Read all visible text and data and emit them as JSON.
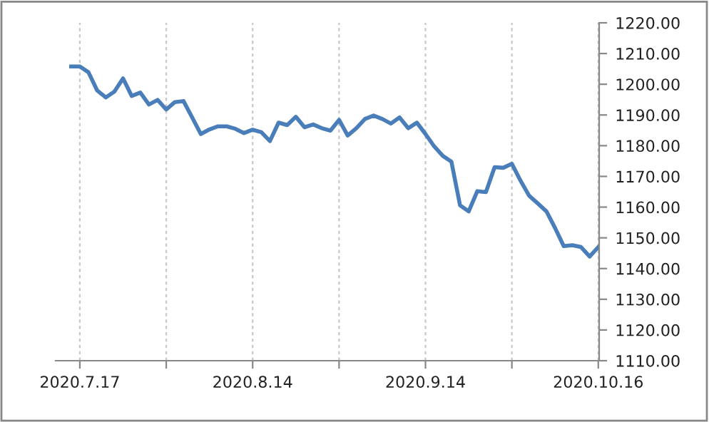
{
  "chart_data": {
    "type": "line",
    "categories": [
      null,
      "2020.7.17",
      null,
      null,
      null,
      null,
      null,
      null,
      null,
      null,
      null,
      null,
      null,
      null,
      null,
      null,
      null,
      null,
      null,
      null,
      null,
      "2020.8.14",
      null,
      null,
      null,
      null,
      null,
      null,
      null,
      null,
      null,
      null,
      null,
      null,
      null,
      null,
      null,
      null,
      null,
      null,
      null,
      "2020.9.14",
      null,
      null,
      null,
      null,
      null,
      null,
      null,
      null,
      null,
      null,
      null,
      null,
      null,
      null,
      null,
      null,
      null,
      null,
      null,
      "2020.10.16"
    ],
    "series": [
      {
        "color": "#4a7ebb",
        "values": [
          1205.8,
          1205.8,
          1203.9,
          1198.0,
          1195.7,
          1197.6,
          1201.9,
          1196.2,
          1197.3,
          1193.4,
          1194.9,
          1191.8,
          1194.2,
          1194.5,
          1189.2,
          1183.8,
          1185.3,
          1186.3,
          1186.3,
          1185.5,
          1184.1,
          1185.2,
          1184.4,
          1181.5,
          1187.5,
          1186.7,
          1189.4,
          1186.0,
          1186.9,
          1185.7,
          1184.9,
          1188.4,
          1183.3,
          1185.7,
          1188.7,
          1189.8,
          1188.7,
          1187.2,
          1189.2,
          1185.7,
          1187.5,
          1183.8,
          1179.8,
          1176.7,
          1174.8,
          1160.6,
          1158.6,
          1165.2,
          1164.9,
          1173.0,
          1172.8,
          1174.1,
          1168.6,
          1163.7,
          1161.2,
          1158.6,
          1153.2,
          1147.3,
          1147.6,
          1147.0,
          1143.9,
          1147.0
        ]
      }
    ],
    "ylim": [
      1110,
      1220
    ],
    "yticks": [
      {
        "value": 1110,
        "label": "1110.00"
      },
      {
        "value": 1120,
        "label": "1120.00"
      },
      {
        "value": 1130,
        "label": "1130.00"
      },
      {
        "value": 1140,
        "label": "1140.00"
      },
      {
        "value": 1150,
        "label": "1150.00"
      },
      {
        "value": 1160,
        "label": "1160.00"
      },
      {
        "value": 1170,
        "label": "1170.00"
      },
      {
        "value": 1180,
        "label": "1180.00"
      },
      {
        "value": 1190,
        "label": "1190.00"
      },
      {
        "value": 1200,
        "label": "1200.00"
      },
      {
        "value": 1210,
        "label": "1210.00"
      },
      {
        "value": 1220,
        "label": "1220.00"
      }
    ],
    "grid": "x",
    "marker": "none",
    "line_style": "solid"
  }
}
